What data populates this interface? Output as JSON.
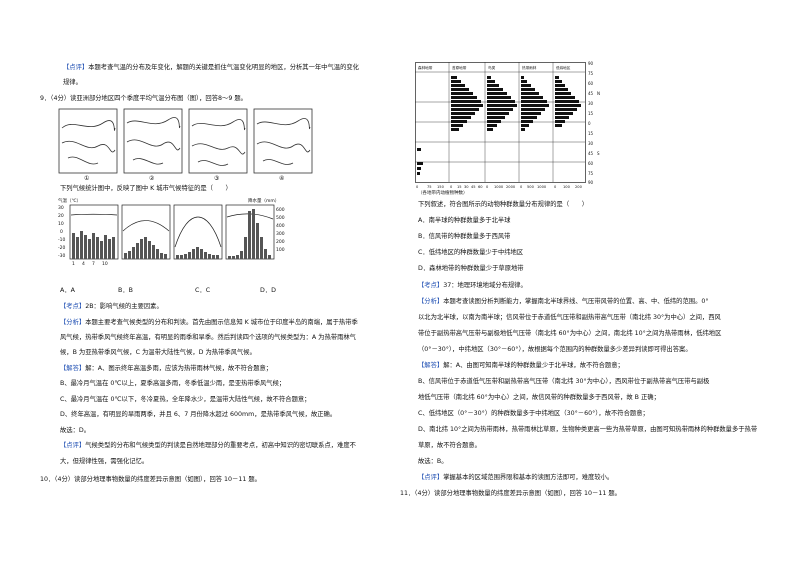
{
  "left": {
    "p_review_top": {
      "tag": "【点评】",
      "line1": "本题考查气温的分布及年变化，解题的关键是抓住气温变化明显的地区，分析其一年中气温的变化",
      "line2": "规律。"
    },
    "q9": {
      "stem": "9．（4分）读亚洲部分地区四个季度平均气温分布图（图），回答8～9 题。",
      "map_labels": [
        "①",
        "②",
        "③",
        "④"
      ],
      "sub_q": "下列气候统计图中，反映了图中 K 城市气候特征的是（　　）",
      "options": [
        "A．A",
        "B．B",
        "C．C",
        "D．D"
      ],
      "kaodian": {
        "tag": "【考点】",
        "text": "2B：影响气候的主要因素。"
      },
      "fenxi": {
        "tag": "【分析】",
        "l1": "本题主要考查气候类型的分布和判读。首先由图示信息知 K 城市位于印度半岛的南端，属于热带季",
        "l2": "风气候，热带季风气候终年高温，有明显的雨季和旱季。然后判读四个选项的气候类型为：A 为热带雨林气",
        "l3": "候，B 为亚热带季风气候，C 为温带大陆性气候，D 为热带季风气候。"
      },
      "jieda": {
        "tag": "【解答】",
        "l1": "解：A、图示终年高温多雨，应该为热带雨林气候，故不符合题意；",
        "l2": "B、最冷月气温在 0℃以上，夏季高温多雨，冬季低温少雨，是亚热带季风气候；",
        "l3": "C、最冷月气温在 0℃以下，冬冷夏热，全年降水少，是温带大陆性气候，故不符合题意；",
        "l4": "D、终年高温，有明显的旱雨两季，并且 6、7 月份降水超过 600mm，是热带季风气候，故正确。",
        "l5": "故选：D。"
      },
      "dianping": {
        "tag": "【点评】",
        "l1": "气候类型的分布和气候类型的判读是自然地理部分的重要考点，初高中知识的密切联系点，难度不",
        "l2": "大，但规律性强，需强化记忆。"
      }
    },
    "q10": "10．（4分）读部分地理事物数量的纬度差异示意图（如图），回答 10－11 题。",
    "climate_charts": {
      "labels": [
        "A",
        "B",
        "C",
        "D"
      ],
      "left_axis_ticks": [
        "30",
        "20",
        "10",
        "0",
        "-10",
        "-20",
        "-30"
      ],
      "right_axis_ticks": [
        "600",
        "500",
        "400",
        "300",
        "200",
        "100"
      ],
      "x_ticks": [
        "1",
        "4",
        "7",
        "10"
      ],
      "axis_title_left": "气温（℃）",
      "axis_title_right": "降水量（mm）"
    }
  },
  "right": {
    "dist_chart": {
      "col_labels": [
        "森林地带",
        "苔原地带",
        "鸟类",
        "热带雨林",
        "低纬地区"
      ],
      "lat_ticks": [
        "90",
        "75",
        "60",
        "45",
        "30",
        "15",
        "0",
        "15",
        "30",
        "45",
        "60",
        "75",
        "90"
      ],
      "hemi_marks": [
        "N",
        "S"
      ],
      "x_ticks_a": [
        "0",
        "75",
        "150"
      ],
      "x_ticks_b": [
        "0",
        "15",
        "30",
        "45",
        "60"
      ],
      "x_ticks_c": [
        "0",
        "1000",
        "2000"
      ],
      "x_ticks_d": [
        "0",
        "500",
        "1000"
      ],
      "x_ticks_e": [
        "0",
        "100",
        "200"
      ],
      "x_caption": "（各地带内动植物种数）"
    },
    "q_text": "下列叙述，符合图所示的动物种群数量分布规律的是（　　）",
    "options": [
      "A．南半球的种群数量多于北半球",
      "B．信风带的种群数量多于西风带",
      "C．低纬地区的种群数量少于中纬地区",
      "D．森林地带的种群数量少于草原地带"
    ],
    "kaodian": {
      "tag": "【考点】",
      "text": "37：地理环境地域分布规律。"
    },
    "fenxi": {
      "tag": "【分析】",
      "l1": "本题考查读图分析判断能力，掌握南北半球界线、气压带风带的位置、高、中、低纬的范围。0°",
      "l2": "以北为北半球，以南为南半球；信风带位于赤道低气压带和副热带高气压带（南北纬 30°为中心）之间，西风",
      "l3": "带位于副热带高气压带与副极地低气压带（南北纬 60°为中心）之间，南北纬 10°之间为热带雨林，低纬地区",
      "l4": "（0°－30°），中纬地区（30°－60°），故根据每个范围内的种群数量多少差异判读即可得出答案。"
    },
    "jieda": {
      "tag": "【解答】",
      "l1": "解：A、由图可知南半球的种群数量少于北半球，故不符合题意；",
      "l2": "B、信风带位于赤道低气压带和副热带高气压带（南北纬 30°为中心），西风带位于副热带高气压带与副极",
      "l3": "地低气压带（南北纬 60°为中心）之间，故信风带的种群数量多于西风带，故 B 正确；",
      "l4": "C、低纬地区（0°－30°）的种群数量多于中纬地区（30°－60°），故不符合题意；",
      "l5": "D、南北纬 10°之间为热带雨林，热带雨林比草原，生物种类更高一些为热带草原，由图可知热带雨林的种群数量多于热带",
      "l6": "草原，故不符合题意。",
      "l7": "故选：B。"
    },
    "dianping": {
      "tag": "【点评】",
      "text": "掌握基本的区域范围界限和基本的读图方法即可，难度较小。"
    },
    "q11": "11．（4分）读部分地理事物数量的纬度差异示意图（如图），回答 10－11 题。"
  }
}
